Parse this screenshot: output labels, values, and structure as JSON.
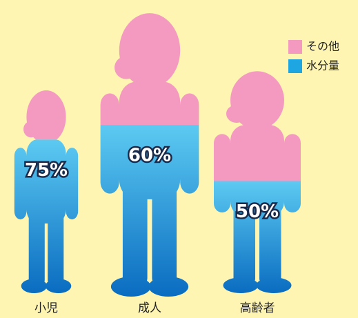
{
  "chart_data": {
    "type": "pictograph",
    "categories": [
      "小児",
      "成人",
      "高齢者"
    ],
    "series": [
      {
        "name": "その他",
        "color": "#f49ac1",
        "values": [
          25,
          40,
          50
        ]
      },
      {
        "name": "水分量",
        "color": "#1ea6e2",
        "values": [
          75,
          60,
          50
        ],
        "value_labels": [
          "75%",
          "60%",
          "50%"
        ]
      }
    ],
    "ylim": [
      0,
      100
    ],
    "legend": "top-right"
  }
}
